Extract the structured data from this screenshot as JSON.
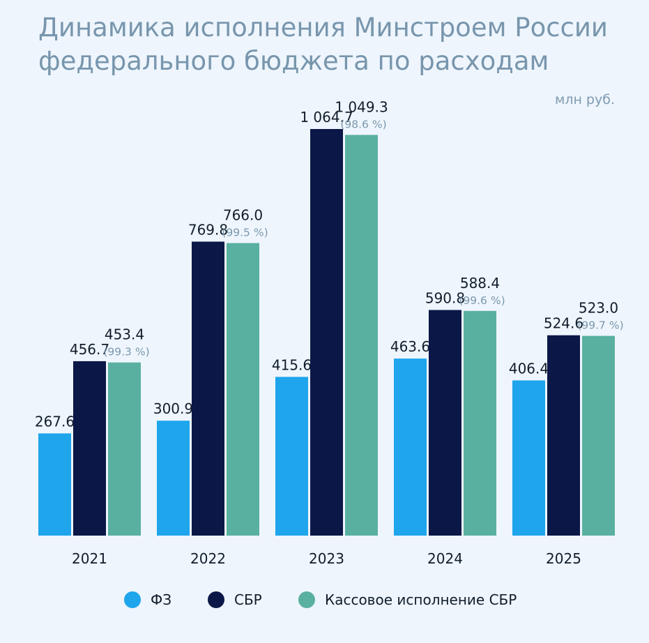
{
  "chart_data": {
    "type": "bar",
    "title_lines": [
      "Динамика исполнения Минстроем России",
      "федерального бюджета по расходам"
    ],
    "unit": "млн руб.",
    "categories": [
      "2021",
      "2022",
      "2023",
      "2024",
      "2025"
    ],
    "series": [
      {
        "name": "ФЗ",
        "color": "#1ea5ec",
        "values": [
          267.6,
          300.9,
          415.6,
          463.6,
          406.4
        ],
        "labels": [
          "267.6",
          "300.9",
          "415.6",
          "463.6",
          "406.4"
        ]
      },
      {
        "name": "СБР",
        "color": "#0b1747",
        "values": [
          456.7,
          769.8,
          1064.7,
          590.8,
          524.6
        ],
        "labels": [
          "456.7",
          "769.8",
          "1 064.7",
          "590.8",
          "524.6"
        ]
      },
      {
        "name": "Кассовое исполнение СБР",
        "color": "#59b0a1",
        "values": [
          453.4,
          766.0,
          1049.3,
          588.4,
          523.0
        ],
        "labels": [
          "453.4",
          "766.0",
          "1 049.3",
          "588.4",
          "523.0"
        ],
        "percent_labels": [
          "(99.3 %)",
          "(99.5 %)",
          "(98.6 %)",
          "(99.6 %)",
          "(99.7 %)"
        ]
      }
    ],
    "ylim": [
      0,
      1064.7
    ],
    "grid": false,
    "legend_position": "bottom"
  }
}
